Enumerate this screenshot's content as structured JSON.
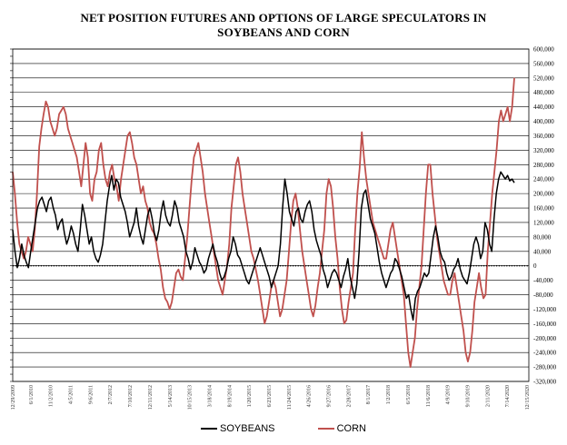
{
  "chart_data": {
    "type": "line",
    "title_line1": "NET POSITION FUTURES AND OPTIONS OF LARGE SPECULATORS IN",
    "title_line2": "SOYBEANS AND CORN",
    "ylim": [
      -320000,
      600000
    ],
    "y_ticks": [
      "600,000",
      "560,000",
      "520,000",
      "480,000",
      "440,000",
      "400,000",
      "360,000",
      "320,000",
      "280,000",
      "240,000",
      "200,000",
      "160,000",
      "120,000",
      "80,000",
      "40,000",
      "0",
      "-40,000",
      "-80,000",
      "-120,000",
      "-160,000",
      "-200,000",
      "-240,000",
      "-280,000",
      "-320,000"
    ],
    "x_ticks": [
      "12/29/2009",
      "6/1/2010",
      "11/2/2010",
      "4/5/2011",
      "9/6/2011",
      "2/7/2012",
      "7/10/2012",
      "12/11/2012",
      "5/14/2013",
      "10/15/2013",
      "3/18/2014",
      "8/19/2014",
      "1/20/2015",
      "6/23/2015",
      "11/24/2015",
      "4/26/2016",
      "9/27/2016",
      "2/28/2017",
      "8/1/2017",
      "1/2/2018",
      "6/5/2018",
      "11/6/2018",
      "4/9/2019",
      "9/10/2019",
      "2/11/2020",
      "7/14/2020",
      "12/15/2020"
    ],
    "series": [
      {
        "name": "SOYBEANS",
        "color": "#000000",
        "values": [
          100000,
          40000,
          -5000,
          20000,
          60000,
          30000,
          10000,
          -5000,
          40000,
          80000,
          120000,
          160000,
          180000,
          190000,
          170000,
          150000,
          180000,
          190000,
          160000,
          140000,
          100000,
          120000,
          130000,
          90000,
          60000,
          80000,
          110000,
          90000,
          60000,
          40000,
          100000,
          170000,
          140000,
          100000,
          60000,
          80000,
          40000,
          20000,
          10000,
          30000,
          60000,
          120000,
          180000,
          220000,
          250000,
          210000,
          240000,
          230000,
          190000,
          170000,
          150000,
          120000,
          80000,
          100000,
          120000,
          160000,
          110000,
          80000,
          60000,
          100000,
          140000,
          160000,
          130000,
          90000,
          70000,
          100000,
          150000,
          180000,
          140000,
          120000,
          110000,
          140000,
          180000,
          160000,
          120000,
          100000,
          80000,
          40000,
          20000,
          -10000,
          10000,
          50000,
          30000,
          10000,
          0,
          -20000,
          -10000,
          20000,
          40000,
          60000,
          30000,
          10000,
          -20000,
          -40000,
          -30000,
          -10000,
          20000,
          40000,
          80000,
          60000,
          30000,
          20000,
          0,
          -20000,
          -40000,
          -50000,
          -30000,
          -10000,
          10000,
          30000,
          50000,
          30000,
          10000,
          -10000,
          -30000,
          -60000,
          -40000,
          -20000,
          0,
          60000,
          160000,
          240000,
          200000,
          150000,
          130000,
          110000,
          150000,
          160000,
          130000,
          120000,
          150000,
          170000,
          180000,
          150000,
          100000,
          70000,
          50000,
          30000,
          -10000,
          -30000,
          -60000,
          -40000,
          -20000,
          -10000,
          -20000,
          -40000,
          -60000,
          -30000,
          -10000,
          20000,
          -30000,
          -60000,
          -90000,
          -50000,
          40000,
          160000,
          200000,
          210000,
          170000,
          130000,
          110000,
          90000,
          50000,
          10000,
          -20000,
          -40000,
          -60000,
          -40000,
          -20000,
          -10000,
          20000,
          10000,
          -10000,
          -30000,
          -60000,
          -90000,
          -80000,
          -120000,
          -150000,
          -90000,
          -70000,
          -60000,
          -40000,
          -20000,
          -30000,
          -20000,
          30000,
          80000,
          110000,
          80000,
          40000,
          20000,
          10000,
          -20000,
          -40000,
          -30000,
          -10000,
          0,
          20000,
          -10000,
          -30000,
          -40000,
          -50000,
          -20000,
          20000,
          60000,
          80000,
          60000,
          20000,
          40000,
          120000,
          100000,
          60000,
          40000,
          130000,
          200000,
          240000,
          260000,
          250000,
          240000,
          250000,
          235000,
          240000,
          230000
        ]
      },
      {
        "name": "CORN",
        "color": "#c0504d",
        "values": [
          260000,
          200000,
          120000,
          60000,
          40000,
          20000,
          40000,
          80000,
          60000,
          40000,
          100000,
          200000,
          330000,
          380000,
          420000,
          455000,
          440000,
          400000,
          380000,
          360000,
          380000,
          420000,
          430000,
          440000,
          420000,
          380000,
          360000,
          340000,
          320000,
          300000,
          260000,
          220000,
          280000,
          340000,
          300000,
          200000,
          180000,
          240000,
          260000,
          320000,
          340000,
          280000,
          240000,
          220000,
          260000,
          280000,
          240000,
          220000,
          180000,
          240000,
          280000,
          320000,
          360000,
          370000,
          340000,
          300000,
          280000,
          240000,
          200000,
          220000,
          180000,
          160000,
          120000,
          100000,
          90000,
          60000,
          20000,
          -10000,
          -60000,
          -90000,
          -100000,
          -120000,
          -100000,
          -60000,
          -20000,
          -10000,
          -30000,
          -40000,
          20000,
          80000,
          160000,
          240000,
          300000,
          320000,
          340000,
          300000,
          260000,
          200000,
          160000,
          120000,
          80000,
          40000,
          0,
          -40000,
          -60000,
          -80000,
          -40000,
          0,
          60000,
          160000,
          220000,
          280000,
          300000,
          260000,
          200000,
          160000,
          120000,
          80000,
          40000,
          20000,
          -10000,
          -40000,
          -80000,
          -120000,
          -160000,
          -140000,
          -100000,
          -60000,
          -40000,
          -60000,
          -100000,
          -140000,
          -120000,
          -80000,
          -40000,
          40000,
          120000,
          180000,
          200000,
          160000,
          100000,
          40000,
          0,
          -40000,
          -80000,
          -120000,
          -140000,
          -110000,
          -60000,
          -20000,
          40000,
          100000,
          200000,
          240000,
          220000,
          160000,
          80000,
          20000,
          -60000,
          -120000,
          -160000,
          -150000,
          -100000,
          -60000,
          -20000,
          100000,
          200000,
          270000,
          370000,
          300000,
          240000,
          200000,
          160000,
          120000,
          100000,
          80000,
          60000,
          40000,
          20000,
          20000,
          60000,
          100000,
          120000,
          80000,
          40000,
          0,
          -40000,
          -80000,
          -160000,
          -240000,
          -280000,
          -240000,
          -200000,
          -120000,
          -60000,
          0,
          100000,
          200000,
          280000,
          280000,
          200000,
          140000,
          80000,
          40000,
          0,
          -40000,
          -60000,
          -80000,
          -80000,
          -40000,
          -20000,
          -60000,
          -100000,
          -140000,
          -180000,
          -240000,
          -265000,
          -240000,
          -180000,
          -100000,
          -60000,
          -20000,
          -60000,
          -90000,
          -80000,
          40000,
          120000,
          200000,
          260000,
          320000,
          400000,
          430000,
          400000,
          420000,
          440000,
          400000,
          440000,
          520000
        ]
      }
    ],
    "grid": true
  }
}
